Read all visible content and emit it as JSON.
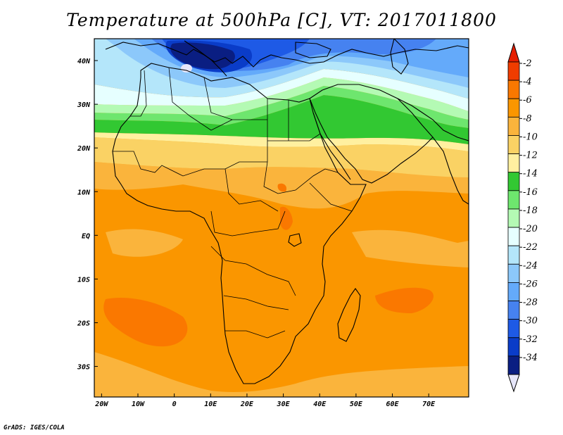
{
  "title": "Temperature at 500hPa [C], VT: 2017011800",
  "credit": "GrADS: IGES/COLA",
  "map": {
    "lon_range": [
      -22,
      81
    ],
    "lat_range": [
      -37,
      45
    ],
    "lon_ticks": [
      {
        "value": -20,
        "label": "20W"
      },
      {
        "value": -10,
        "label": "10W"
      },
      {
        "value": 0,
        "label": "0"
      },
      {
        "value": 10,
        "label": "10E"
      },
      {
        "value": 20,
        "label": "20E"
      },
      {
        "value": 30,
        "label": "30E"
      },
      {
        "value": 40,
        "label": "40E"
      },
      {
        "value": 50,
        "label": "50E"
      },
      {
        "value": 60,
        "label": "60E"
      },
      {
        "value": 70,
        "label": "70E"
      }
    ],
    "lat_ticks": [
      {
        "value": 40,
        "label": "40N"
      },
      {
        "value": 30,
        "label": "30N"
      },
      {
        "value": 20,
        "label": "20N"
      },
      {
        "value": 10,
        "label": "10N"
      },
      {
        "value": 0,
        "label": "EQ"
      },
      {
        "value": -10,
        "label": "10S"
      },
      {
        "value": -20,
        "label": "20S"
      },
      {
        "value": -30,
        "label": "30S"
      }
    ]
  },
  "colorbar": {
    "labels": [
      "-2",
      "-4",
      "-6",
      "-8",
      "-10",
      "-12",
      "-14",
      "-16",
      "-18",
      "-20",
      "-22",
      "-24",
      "-26",
      "-28",
      "-30",
      "-32",
      "-34"
    ],
    "colors": [
      "#f03c00",
      "#fa7800",
      "#fa9600",
      "#fab43c",
      "#fad264",
      "#fff0a0",
      "#32c832",
      "#6ee66e",
      "#b4fab4",
      "#e6ffff",
      "#b4e6fa",
      "#8cc8fa",
      "#64aafa",
      "#4682f0",
      "#1e5ae6",
      "#0a3cc8",
      "#0a1e82"
    ],
    "top_arrow_color": "#e61e00",
    "bottom_arrow_color": "#e6e6fa"
  }
}
